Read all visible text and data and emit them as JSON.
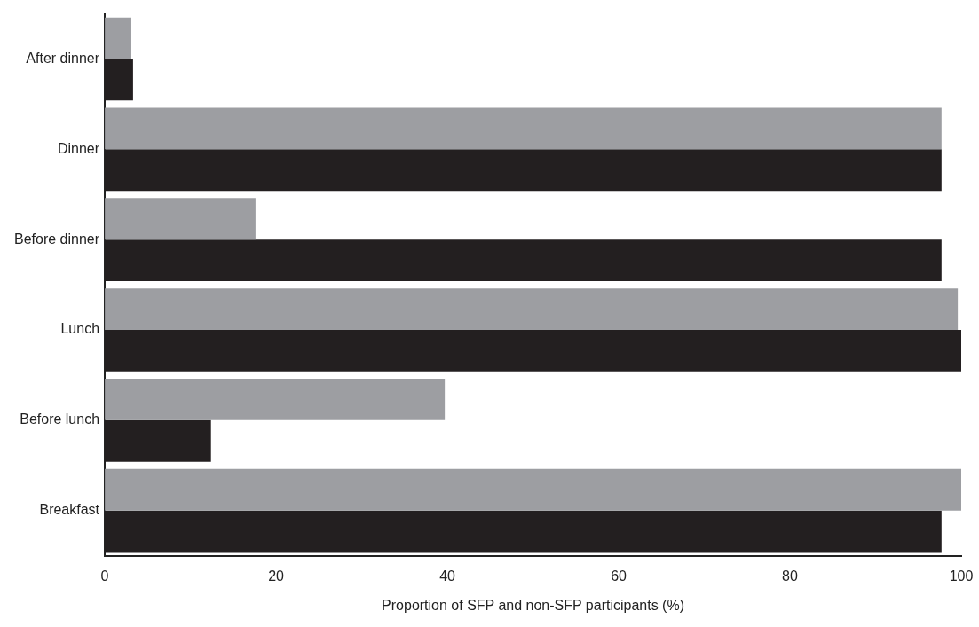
{
  "chart_data": {
    "type": "bar",
    "orientation": "horizontal",
    "xlabel": "Proportion of SFP and non-SFP participants (%)",
    "categories": [
      "After dinner",
      "Dinner",
      "Before dinner",
      "Lunch",
      "Before lunch",
      "Breakfast"
    ],
    "series": [
      {
        "color": "#9d9ea2",
        "values": [
          3.1,
          97.7,
          17.6,
          99.6,
          39.7,
          100
        ]
      },
      {
        "color": "#231f20",
        "values": [
          3.3,
          97.7,
          97.7,
          100,
          12.4,
          97.7
        ]
      }
    ],
    "xlim": [
      0,
      100
    ],
    "xticks": [
      0,
      20,
      40,
      60,
      80,
      100
    ],
    "grid": false,
    "legend": false
  }
}
